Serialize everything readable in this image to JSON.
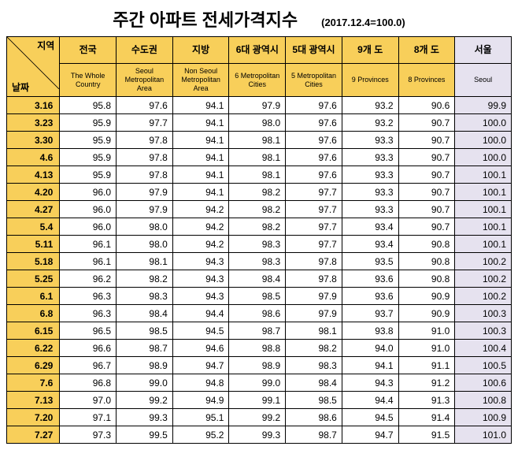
{
  "title": "주간 아파트 전세가격지수",
  "subtitle": "(2017.12.4=100.0)",
  "corner": {
    "top": "지역",
    "bottom": "날짜"
  },
  "columns": [
    {
      "kr": "전국",
      "en": "The Whole Country"
    },
    {
      "kr": "수도권",
      "en": "Seoul Metropolitan Area"
    },
    {
      "kr": "지방",
      "en": "Non Seoul Metropolitan Area"
    },
    {
      "kr": "6대 광역시",
      "en": "6 Metropolitan Cities"
    },
    {
      "kr": "5대 광역시",
      "en": "5 Metropolitan Cities"
    },
    {
      "kr": "9개 도",
      "en": "9 Provinces"
    },
    {
      "kr": "8개 도",
      "en": "8 Provinces"
    },
    {
      "kr": "서울",
      "en": "Seoul"
    }
  ],
  "groups": [
    [
      {
        "date": "3.16",
        "v": [
          "95.8",
          "97.6",
          "94.1",
          "97.9",
          "97.6",
          "93.2",
          "90.6",
          "99.9"
        ]
      },
      {
        "date": "3.23",
        "v": [
          "95.9",
          "97.7",
          "94.1",
          "98.0",
          "97.6",
          "93.2",
          "90.7",
          "100.0"
        ]
      },
      {
        "date": "3.30",
        "v": [
          "95.9",
          "97.8",
          "94.1",
          "98.1",
          "97.6",
          "93.3",
          "90.7",
          "100.0"
        ]
      }
    ],
    [
      {
        "date": "4.6",
        "v": [
          "95.9",
          "97.8",
          "94.1",
          "98.1",
          "97.6",
          "93.3",
          "90.7",
          "100.0"
        ]
      },
      {
        "date": "4.13",
        "v": [
          "95.9",
          "97.8",
          "94.1",
          "98.1",
          "97.6",
          "93.3",
          "90.7",
          "100.1"
        ]
      },
      {
        "date": "4.20",
        "v": [
          "96.0",
          "97.9",
          "94.1",
          "98.2",
          "97.7",
          "93.3",
          "90.7",
          "100.1"
        ]
      },
      {
        "date": "4.27",
        "v": [
          "96.0",
          "97.9",
          "94.2",
          "98.2",
          "97.7",
          "93.3",
          "90.7",
          "100.1"
        ]
      }
    ],
    [
      {
        "date": "5.4",
        "v": [
          "96.0",
          "98.0",
          "94.2",
          "98.2",
          "97.7",
          "93.4",
          "90.7",
          "100.1"
        ]
      },
      {
        "date": "5.11",
        "v": [
          "96.1",
          "98.0",
          "94.2",
          "98.3",
          "97.7",
          "93.4",
          "90.8",
          "100.1"
        ]
      },
      {
        "date": "5.18",
        "v": [
          "96.1",
          "98.1",
          "94.3",
          "98.3",
          "97.8",
          "93.5",
          "90.8",
          "100.2"
        ]
      },
      {
        "date": "5.25",
        "v": [
          "96.2",
          "98.2",
          "94.3",
          "98.4",
          "97.8",
          "93.6",
          "90.8",
          "100.2"
        ]
      }
    ],
    [
      {
        "date": "6.1",
        "v": [
          "96.3",
          "98.3",
          "94.3",
          "98.5",
          "97.9",
          "93.6",
          "90.9",
          "100.2"
        ]
      },
      {
        "date": "6.8",
        "v": [
          "96.3",
          "98.4",
          "94.4",
          "98.6",
          "97.9",
          "93.7",
          "90.9",
          "100.3"
        ]
      },
      {
        "date": "6.15",
        "v": [
          "96.5",
          "98.5",
          "94.5",
          "98.7",
          "98.1",
          "93.8",
          "91.0",
          "100.3"
        ]
      },
      {
        "date": "6.22",
        "v": [
          "96.6",
          "98.7",
          "94.6",
          "98.8",
          "98.2",
          "94.0",
          "91.0",
          "100.4"
        ]
      },
      {
        "date": "6.29",
        "v": [
          "96.7",
          "98.9",
          "94.7",
          "98.9",
          "98.3",
          "94.1",
          "91.1",
          "100.5"
        ]
      }
    ],
    [
      {
        "date": "7.6",
        "v": [
          "96.8",
          "99.0",
          "94.8",
          "99.0",
          "98.4",
          "94.3",
          "91.2",
          "100.6"
        ]
      },
      {
        "date": "7.13",
        "v": [
          "97.0",
          "99.2",
          "94.9",
          "99.1",
          "98.5",
          "94.4",
          "91.3",
          "100.8"
        ]
      },
      {
        "date": "7.20",
        "v": [
          "97.1",
          "99.3",
          "95.1",
          "99.2",
          "98.6",
          "94.5",
          "91.4",
          "100.9"
        ]
      },
      {
        "date": "7.27",
        "v": [
          "97.3",
          "99.5",
          "95.2",
          "99.3",
          "98.7",
          "94.7",
          "91.5",
          "101.0"
        ]
      }
    ]
  ],
  "colors": {
    "header_bg": "#f8cf5a",
    "seoul_bg": "#e6e2ef",
    "row_bg": "#ffffff",
    "border": "#000000"
  }
}
